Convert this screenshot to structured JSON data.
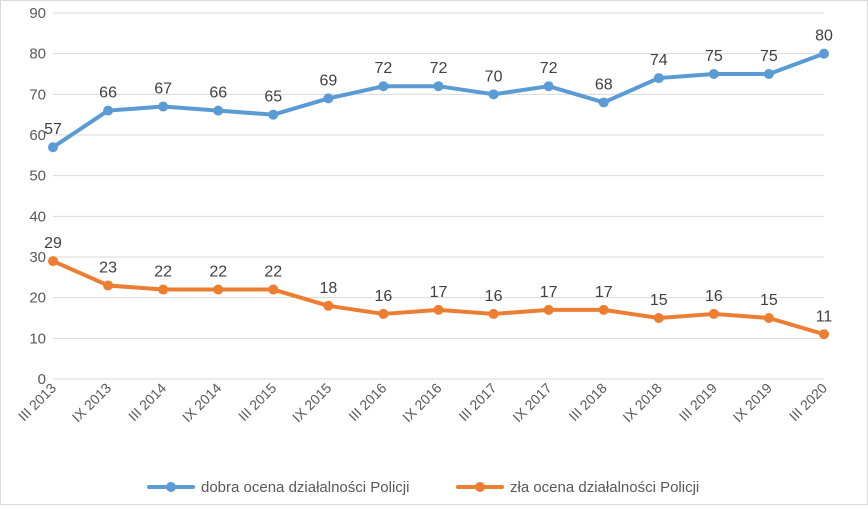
{
  "chart_data": {
    "type": "line",
    "title": "",
    "xlabel": "",
    "ylabel": "",
    "ylim": [
      0,
      90
    ],
    "yticks": [
      0,
      10,
      20,
      30,
      40,
      50,
      60,
      70,
      80,
      90
    ],
    "grid": true,
    "legend_position": "bottom",
    "categories": [
      "III 2013",
      "IX 2013",
      "III 2014",
      "IX 2014",
      "III 2015",
      "IX 2015",
      "III 2016",
      "IX 2016",
      "III 2017",
      "IX 2017",
      "III 2018",
      "IX 2018",
      "III 2019",
      "IX 2019",
      "III 2020"
    ],
    "series": [
      {
        "name": "dobra ocena działalności Policji",
        "color": "#5b9bd5",
        "values": [
          57,
          66,
          67,
          66,
          65,
          69,
          72,
          72,
          70,
          72,
          68,
          74,
          75,
          75,
          80
        ]
      },
      {
        "name": "zła ocena działalności Policji",
        "color": "#ed7d31",
        "values": [
          29,
          23,
          22,
          22,
          22,
          18,
          16,
          17,
          16,
          17,
          17,
          15,
          16,
          15,
          11
        ]
      }
    ]
  }
}
